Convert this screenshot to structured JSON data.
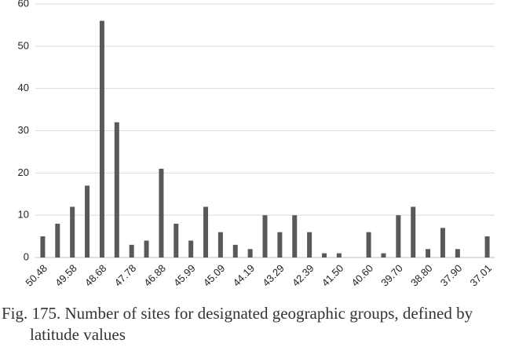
{
  "chart_data": {
    "type": "bar",
    "title": "Fig. 175. Number of sites for designated geographic groups, defined by latitude values",
    "categories": [
      "50.48",
      null,
      "49.58",
      null,
      "48.68",
      null,
      "47.78",
      null,
      "46.88",
      null,
      "45.99",
      null,
      "45.09",
      null,
      "44.19",
      null,
      "43.29",
      null,
      "42.39",
      null,
      "41.50",
      null,
      "40.60",
      null,
      "39.70",
      null,
      "38.80",
      null,
      "37.90",
      null,
      "37.01"
    ],
    "values": [
      5,
      8,
      12,
      17,
      56,
      32,
      3,
      4,
      21,
      8,
      4,
      12,
      6,
      3,
      2,
      10,
      6,
      10,
      6,
      1,
      1,
      0,
      6,
      1,
      10,
      12,
      2,
      7,
      2,
      0,
      5
    ],
    "color": "#595959",
    "ylim": [
      0,
      60
    ],
    "yticks": [
      0,
      10,
      20,
      30,
      40,
      50,
      60
    ],
    "grid": true
  }
}
